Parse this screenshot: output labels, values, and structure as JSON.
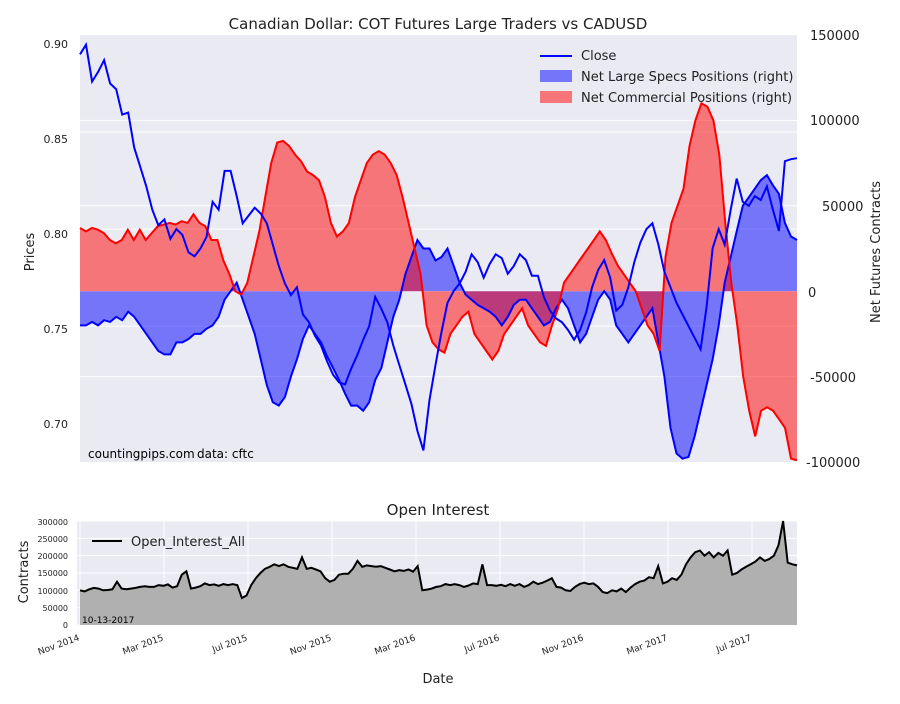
{
  "chart_data": [
    {
      "type": "line",
      "title": "Canadian Dollar: COT Futures Large Traders vs CADUSD",
      "ylabel": "Prices",
      "y2label": "Net Futures Contracts",
      "ylim": [
        0.68,
        0.9
      ],
      "y2lim": [
        -100000,
        150000
      ],
      "yticks": [
        "0.90",
        "0.85",
        "0.80",
        "0.75",
        "0.70"
      ],
      "y2ticks": [
        "150000",
        "100000",
        "50000",
        "0",
        "-50000",
        "-100000"
      ],
      "legend_position": "top-right",
      "annotations": [
        "countingpips.com",
        "data: cftc"
      ],
      "colors": {
        "close": "#0000ff",
        "specs": "#0000ff",
        "commercial": "#ff0000",
        "background": "#eaeaf2",
        "grid": "#ffffff"
      },
      "series": [
        {
          "name": "Close",
          "axis": "left",
          "values": [
            0.89,
            0.895,
            0.876,
            0.881,
            0.887,
            0.875,
            0.872,
            0.859,
            0.86,
            0.842,
            0.832,
            0.822,
            0.81,
            0.802,
            0.805,
            0.795,
            0.8,
            0.797,
            0.788,
            0.786,
            0.79,
            0.796,
            0.814,
            0.81,
            0.83,
            0.83,
            0.817,
            0.803,
            0.807,
            0.811,
            0.808,
            0.803,
            0.792,
            0.781,
            0.772,
            0.766,
            0.77,
            0.756,
            0.752,
            0.745,
            0.74,
            0.732,
            0.725,
            0.721,
            0.72,
            0.728,
            0.735,
            0.743,
            0.75,
            0.765,
            0.759,
            0.752,
            0.74,
            0.73,
            0.72,
            0.71,
            0.696,
            0.686,
            0.712,
            0.73,
            0.747,
            0.762,
            0.768,
            0.772,
            0.778,
            0.787,
            0.783,
            0.775,
            0.782,
            0.787,
            0.785,
            0.777,
            0.781,
            0.787,
            0.784,
            0.776,
            0.776,
            0.765,
            0.758,
            0.754,
            0.752,
            0.748,
            0.743,
            0.748,
            0.757,
            0.77,
            0.779,
            0.784,
            0.775,
            0.758,
            0.761,
            0.77,
            0.783,
            0.793,
            0.8,
            0.803,
            0.792,
            0.778,
            0.77,
            0.762,
            0.756,
            0.75,
            0.744,
            0.738,
            0.76,
            0.79,
            0.8,
            0.792,
            0.81,
            0.826,
            0.814,
            0.812,
            0.817,
            0.815,
            0.822,
            0.81,
            0.799,
            0.835,
            0.836,
            0.8365
          ]
        },
        {
          "name": "Net Large Specs Positions (right)",
          "axis": "right",
          "values": [
            -20000,
            -20000,
            -18000,
            -20000,
            -17000,
            -18000,
            -15000,
            -17000,
            -12000,
            -15000,
            -20000,
            -25000,
            -30000,
            -35000,
            -37000,
            -37000,
            -30000,
            -30000,
            -28000,
            -25000,
            -25000,
            -22000,
            -20000,
            -15000,
            -5000,
            0,
            5000,
            -5000,
            -15000,
            -25000,
            -40000,
            -55000,
            -65000,
            -67000,
            -62000,
            -50000,
            -40000,
            -28000,
            -20000,
            -25000,
            -30000,
            -38000,
            -45000,
            -52000,
            -60000,
            -67000,
            -67000,
            -70000,
            -65000,
            -52000,
            -45000,
            -30000,
            -15000,
            -5000,
            10000,
            20000,
            30000,
            25000,
            25000,
            18000,
            20000,
            25000,
            15000,
            5000,
            -2000,
            -5000,
            -8000,
            -10000,
            -12000,
            -15000,
            -20000,
            -15000,
            -8000,
            -5000,
            -5000,
            -10000,
            -15000,
            -20000,
            -18000,
            -10000,
            -5000,
            -10000,
            -20000,
            -30000,
            -25000,
            -15000,
            -5000,
            0,
            -5000,
            -20000,
            -25000,
            -30000,
            -25000,
            -20000,
            -15000,
            -10000,
            -30000,
            -50000,
            -80000,
            -95000,
            -98000,
            -97000,
            -85000,
            -70000,
            -55000,
            -40000,
            -20000,
            5000,
            20000,
            35000,
            50000,
            55000,
            60000,
            65000,
            68000,
            62000,
            57000,
            40000,
            32000,
            30000
          ]
        },
        {
          "name": "Net Commercial Positions (right)",
          "axis": "right",
          "values": [
            37000,
            35000,
            37000,
            36000,
            34000,
            30000,
            28000,
            30000,
            36000,
            30000,
            36000,
            30000,
            34000,
            38000,
            39000,
            40000,
            39000,
            41000,
            40000,
            45000,
            40000,
            38000,
            30000,
            30000,
            18000,
            10000,
            0,
            -2000,
            5000,
            20000,
            35000,
            55000,
            75000,
            87000,
            88000,
            85000,
            80000,
            76000,
            70000,
            68000,
            65000,
            55000,
            40000,
            32000,
            35000,
            40000,
            55000,
            65000,
            75000,
            80000,
            82000,
            80000,
            75000,
            68000,
            55000,
            40000,
            25000,
            10000,
            -20000,
            -30000,
            -34000,
            -36000,
            -25000,
            -20000,
            -15000,
            -12000,
            -25000,
            -30000,
            -35000,
            -40000,
            -35000,
            -25000,
            -20000,
            -15000,
            -10000,
            -20000,
            -25000,
            -30000,
            -32000,
            -20000,
            -10000,
            5000,
            10000,
            15000,
            20000,
            25000,
            30000,
            35000,
            30000,
            22000,
            15000,
            10000,
            5000,
            0,
            -10000,
            -20000,
            -25000,
            -35000,
            20000,
            40000,
            50000,
            60000,
            85000,
            100000,
            110000,
            108000,
            100000,
            80000,
            40000,
            5000,
            -20000,
            -50000,
            -70000,
            -85000,
            -70000,
            -68000,
            -70000,
            -75000,
            -80000,
            -98000,
            -99000
          ]
        }
      ]
    },
    {
      "type": "area",
      "title": "Open Interest",
      "xlabel": "Date",
      "ylabel": "Contracts",
      "ylim": [
        0,
        300000
      ],
      "yticks": [
        "300000",
        "250000",
        "200000",
        "150000",
        "100000",
        "50000",
        "0"
      ],
      "x_tick_labels": [
        "Nov 2014",
        "Mar 2015",
        "Jul 2015",
        "Nov 2015",
        "Mar 2016",
        "Jul 2016",
        "Nov 2016",
        "Mar 2017",
        "Jul 2017"
      ],
      "legend_position": "top-left",
      "annotations": [
        "10-13-2017"
      ],
      "colors": {
        "line": "#000000",
        "fill": "#b0b0b0",
        "background": "#eaeaf2",
        "grid": "#ffffff"
      },
      "series": [
        {
          "name": "Open_Interest_All",
          "values": [
            100000,
            97000,
            103000,
            107000,
            105000,
            100000,
            101000,
            103000,
            125000,
            105000,
            103000,
            105000,
            107000,
            110000,
            112000,
            110000,
            110000,
            115000,
            113000,
            117000,
            108000,
            112000,
            145000,
            155000,
            105000,
            108000,
            112000,
            120000,
            115000,
            117000,
            113000,
            118000,
            115000,
            118000,
            115000,
            78000,
            85000,
            115000,
            135000,
            150000,
            162000,
            168000,
            175000,
            170000,
            175000,
            168000,
            165000,
            162000,
            195000,
            162000,
            165000,
            160000,
            155000,
            135000,
            125000,
            130000,
            145000,
            148000,
            148000,
            162000,
            185000,
            168000,
            172000,
            170000,
            168000,
            170000,
            165000,
            160000,
            155000,
            158000,
            156000,
            160000,
            154000,
            170000,
            100000,
            102000,
            105000,
            110000,
            112000,
            118000,
            115000,
            118000,
            115000,
            110000,
            114000,
            120000,
            118000,
            175000,
            115000,
            115000,
            113000,
            116000,
            112000,
            118000,
            113000,
            118000,
            110000,
            115000,
            125000,
            118000,
            122000,
            128000,
            135000,
            110000,
            108000,
            100000,
            98000,
            110000,
            118000,
            122000,
            118000,
            120000,
            110000,
            95000,
            92000,
            100000,
            97000,
            105000,
            95000,
            108000,
            118000,
            125000,
            128000,
            138000,
            135000,
            170000,
            120000,
            125000,
            135000,
            130000,
            145000,
            175000,
            195000,
            210000,
            215000,
            200000,
            210000,
            195000,
            208000,
            200000,
            215000,
            145000,
            150000,
            160000,
            168000,
            175000,
            183000,
            195000,
            185000,
            190000,
            200000,
            230000,
            300000,
            180000,
            175000,
            172000
          ]
        }
      ]
    }
  ]
}
